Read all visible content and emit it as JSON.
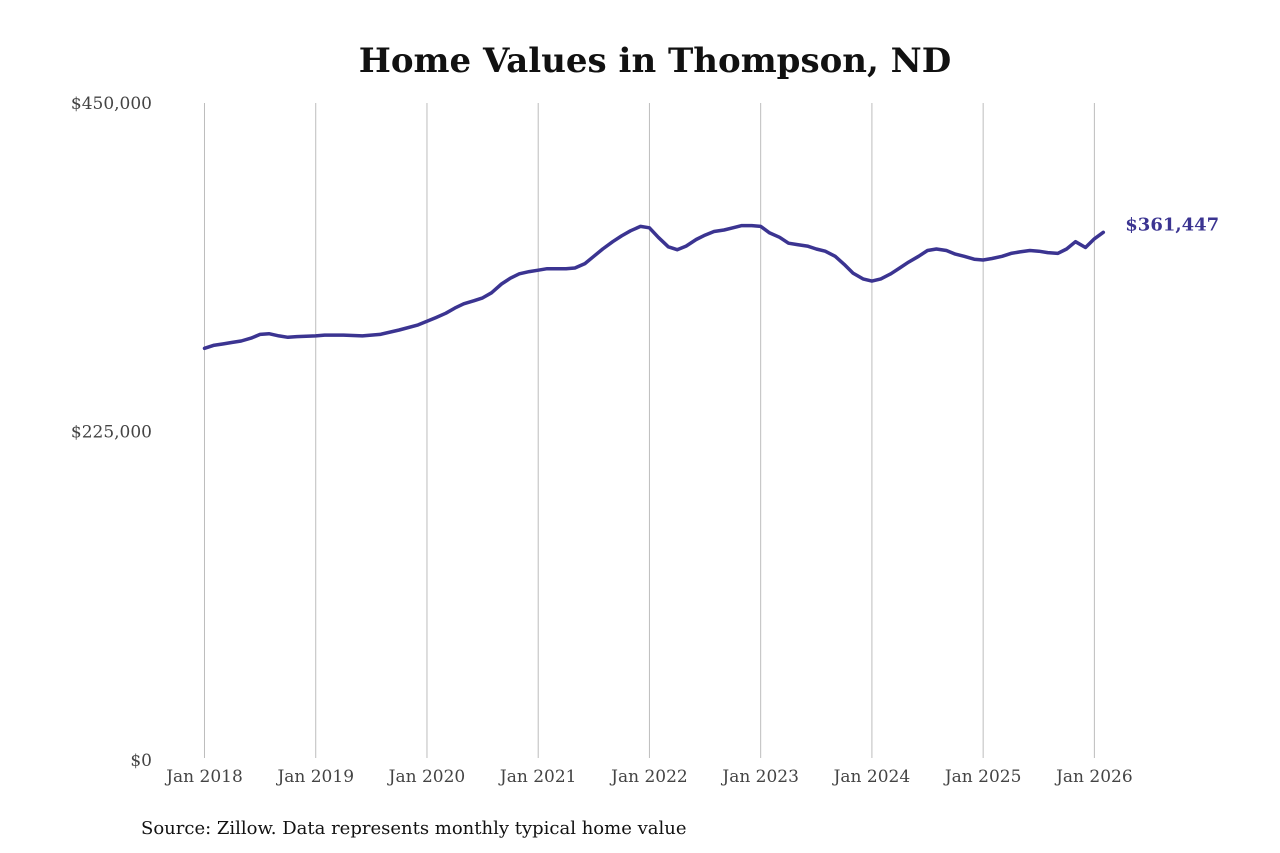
{
  "source_note": "Source: Zillow. Data represents monthly typical home value",
  "chart_data": {
    "type": "line",
    "title": "Home Values in Thompson, ND",
    "xlabel": "",
    "ylabel": "",
    "ylim": [
      0,
      450000
    ],
    "y_ticks": [
      {
        "value": 0,
        "label": "$0"
      },
      {
        "value": 225000,
        "label": "$225,000"
      },
      {
        "value": 450000,
        "label": "$450,000"
      }
    ],
    "x_ticks": [
      {
        "value": 2018.0,
        "label": "Jan 2018"
      },
      {
        "value": 2019.0,
        "label": "Jan 2019"
      },
      {
        "value": 2020.0,
        "label": "Jan 2020"
      },
      {
        "value": 2021.0,
        "label": "Jan 2021"
      },
      {
        "value": 2022.0,
        "label": "Jan 2022"
      },
      {
        "value": 2023.0,
        "label": "Jan 2023"
      },
      {
        "value": 2024.0,
        "label": "Jan 2024"
      },
      {
        "value": 2025.0,
        "label": "Jan 2025"
      },
      {
        "value": 2026.0,
        "label": "Jan 2026"
      }
    ],
    "xlim": [
      2017.6,
      2026.5
    ],
    "grid": {
      "vertical": true,
      "horizontal": false
    },
    "series": [
      {
        "color": "#3b3491",
        "end_label": "$361,447",
        "x": [
          2018.0,
          2018.08,
          2018.17,
          2018.25,
          2018.33,
          2018.42,
          2018.5,
          2018.58,
          2018.67,
          2018.75,
          2018.83,
          2019.0,
          2019.08,
          2019.25,
          2019.42,
          2019.58,
          2019.75,
          2019.92,
          2020.0,
          2020.08,
          2020.17,
          2020.25,
          2020.33,
          2020.42,
          2020.5,
          2020.58,
          2020.67,
          2020.75,
          2020.83,
          2020.92,
          2021.0,
          2021.08,
          2021.25,
          2021.33,
          2021.42,
          2021.5,
          2021.58,
          2021.67,
          2021.75,
          2021.83,
          2021.92,
          2022.0,
          2022.08,
          2022.17,
          2022.25,
          2022.33,
          2022.42,
          2022.5,
          2022.58,
          2022.67,
          2022.75,
          2022.83,
          2022.92,
          2023.0,
          2023.08,
          2023.17,
          2023.25,
          2023.33,
          2023.42,
          2023.5,
          2023.58,
          2023.67,
          2023.75,
          2023.83,
          2023.92,
          2024.0,
          2024.08,
          2024.17,
          2024.25,
          2024.33,
          2024.42,
          2024.5,
          2024.58,
          2024.67,
          2024.75,
          2024.83,
          2024.92,
          2025.0,
          2025.08,
          2025.17,
          2025.25,
          2025.33,
          2025.42,
          2025.5,
          2025.58,
          2025.67,
          2025.75,
          2025.83,
          2025.92,
          2026.0,
          2026.08
        ],
        "values": [
          282000,
          284000,
          285000,
          286000,
          287000,
          289000,
          291500,
          292000,
          290500,
          289500,
          290000,
          290500,
          291000,
          291000,
          290500,
          291500,
          294500,
          298000,
          300500,
          303000,
          306000,
          309500,
          312500,
          314500,
          316500,
          320000,
          326000,
          330000,
          333000,
          334500,
          335500,
          336500,
          336500,
          337000,
          340000,
          345000,
          350000,
          355000,
          359000,
          362500,
          365500,
          364500,
          358000,
          351500,
          349500,
          352000,
          356500,
          359500,
          362000,
          363000,
          364500,
          366000,
          366000,
          365500,
          361000,
          358000,
          354000,
          353000,
          352000,
          350000,
          348500,
          345000,
          339500,
          333500,
          329500,
          328000,
          329500,
          333000,
          337000,
          341000,
          345000,
          349000,
          350000,
          349000,
          346500,
          345000,
          343000,
          342500,
          343500,
          345000,
          347000,
          348000,
          349000,
          348500,
          347500,
          347000,
          350000,
          355000,
          351000,
          357000,
          361447
        ]
      }
    ]
  }
}
